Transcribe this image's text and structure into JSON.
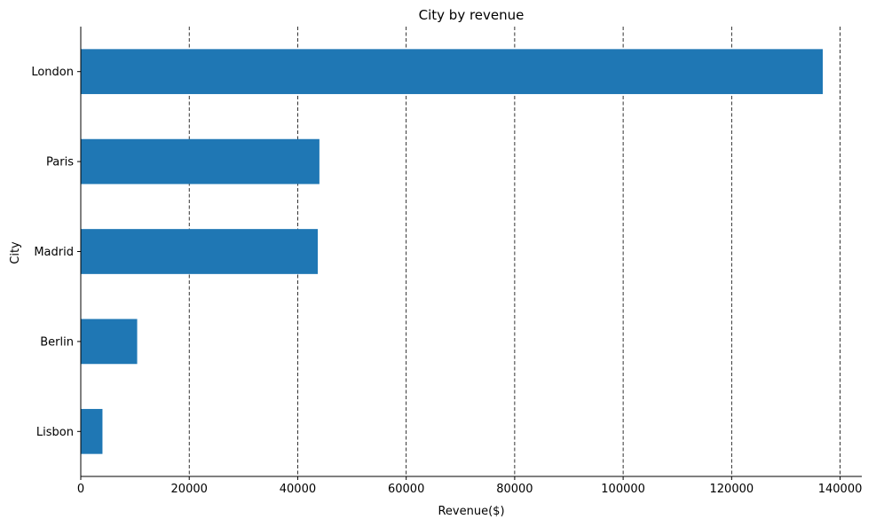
{
  "chart_data": {
    "type": "bar",
    "orientation": "horizontal",
    "title": "City by revenue",
    "xlabel": "Revenue($)",
    "ylabel": "City",
    "categories": [
      "London",
      "Paris",
      "Madrid",
      "Berlin",
      "Lisbon"
    ],
    "values": [
      136800,
      44000,
      43700,
      10400,
      4000
    ],
    "xlim": [
      0,
      144000
    ],
    "xticks": [
      0,
      20000,
      40000,
      60000,
      80000,
      100000,
      120000,
      140000
    ],
    "grid": "vertical dashed",
    "legend": "none",
    "bar_color": "#1f77b4"
  }
}
